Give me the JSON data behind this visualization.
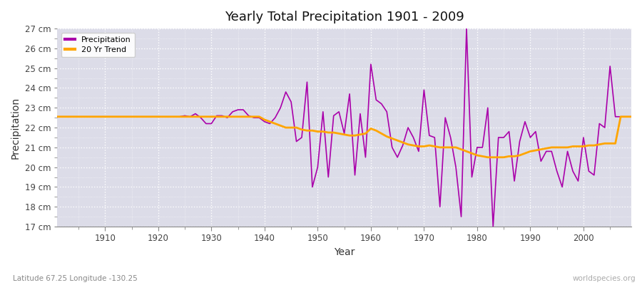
{
  "title": "Yearly Total Precipitation 1901 - 2009",
  "xlabel": "Year",
  "ylabel": "Precipitation",
  "subtitle": "Latitude 67.25 Longitude -130.25",
  "watermark": "worldspecies.org",
  "ylim": [
    17,
    27
  ],
  "yticks": [
    17,
    18,
    19,
    20,
    21,
    22,
    23,
    24,
    25,
    26,
    27
  ],
  "xlim": [
    1901,
    2009
  ],
  "precip_color": "#aa00aa",
  "trend_color": "#ffa500",
  "bg_color": "#dcdce8",
  "fig_bg": "#ffffff",
  "years": [
    1901,
    1902,
    1903,
    1904,
    1905,
    1906,
    1907,
    1908,
    1909,
    1910,
    1911,
    1912,
    1913,
    1914,
    1915,
    1916,
    1917,
    1918,
    1919,
    1920,
    1921,
    1922,
    1923,
    1924,
    1925,
    1926,
    1927,
    1928,
    1929,
    1930,
    1931,
    1932,
    1933,
    1934,
    1935,
    1936,
    1937,
    1938,
    1939,
    1940,
    1941,
    1942,
    1943,
    1944,
    1945,
    1946,
    1947,
    1948,
    1949,
    1950,
    1951,
    1952,
    1953,
    1954,
    1955,
    1956,
    1957,
    1958,
    1959,
    1960,
    1961,
    1962,
    1963,
    1964,
    1965,
    1966,
    1967,
    1968,
    1969,
    1970,
    1971,
    1972,
    1973,
    1974,
    1975,
    1976,
    1977,
    1978,
    1979,
    1980,
    1981,
    1982,
    1983,
    1984,
    1985,
    1986,
    1987,
    1988,
    1989,
    1990,
    1991,
    1992,
    1993,
    1994,
    1995,
    1996,
    1997,
    1998,
    1999,
    2000,
    2001,
    2002,
    2003,
    2004,
    2005,
    2006,
    2007,
    2008,
    2009
  ],
  "precip": [
    22.55,
    22.55,
    22.55,
    22.55,
    22.55,
    22.55,
    22.55,
    22.55,
    22.55,
    22.55,
    22.55,
    22.55,
    22.55,
    22.55,
    22.55,
    22.55,
    22.55,
    22.55,
    22.55,
    22.55,
    22.55,
    22.55,
    22.55,
    22.55,
    22.6,
    22.55,
    22.7,
    22.5,
    22.2,
    22.2,
    22.6,
    22.6,
    22.5,
    22.8,
    22.9,
    22.9,
    22.6,
    22.5,
    22.5,
    22.3,
    22.2,
    22.5,
    23.0,
    23.8,
    23.3,
    21.3,
    21.5,
    24.3,
    19.0,
    20.0,
    22.8,
    19.5,
    22.6,
    22.8,
    21.7,
    23.7,
    19.6,
    22.7,
    20.5,
    25.2,
    23.4,
    23.2,
    22.8,
    21.0,
    20.5,
    21.1,
    22.0,
    21.5,
    20.8,
    23.9,
    21.6,
    21.5,
    18.0,
    22.5,
    21.5,
    20.0,
    17.5,
    27.0,
    19.5,
    21.0,
    21.0,
    23.0,
    17.0,
    21.5,
    21.5,
    21.8,
    19.3,
    21.3,
    22.3,
    21.5,
    21.8,
    20.3,
    20.8,
    20.8,
    19.8,
    19.0,
    20.8,
    19.8,
    19.3,
    21.5,
    19.8,
    19.6,
    22.2,
    22.0,
    25.1,
    22.55,
    22.55,
    22.55,
    22.55
  ],
  "trend": [
    22.55,
    22.55,
    22.55,
    22.55,
    22.55,
    22.55,
    22.55,
    22.55,
    22.55,
    22.55,
    22.55,
    22.55,
    22.55,
    22.55,
    22.55,
    22.55,
    22.55,
    22.55,
    22.55,
    22.55,
    22.55,
    22.55,
    22.55,
    22.55,
    22.55,
    22.55,
    22.55,
    22.55,
    22.55,
    22.55,
    22.55,
    22.55,
    22.55,
    22.55,
    22.55,
    22.55,
    22.55,
    22.55,
    22.55,
    22.4,
    22.3,
    22.2,
    22.1,
    22.0,
    22.0,
    22.0,
    21.9,
    21.85,
    21.85,
    21.8,
    21.8,
    21.75,
    21.75,
    21.7,
    21.65,
    21.6,
    21.6,
    21.65,
    21.7,
    21.95,
    21.85,
    21.7,
    21.55,
    21.45,
    21.35,
    21.25,
    21.15,
    21.1,
    21.05,
    21.05,
    21.1,
    21.05,
    21.0,
    21.0,
    21.0,
    21.0,
    20.9,
    20.8,
    20.7,
    20.6,
    20.55,
    20.5,
    20.5,
    20.5,
    20.5,
    20.55,
    20.55,
    20.6,
    20.7,
    20.8,
    20.85,
    20.9,
    20.95,
    21.0,
    21.0,
    21.0,
    21.0,
    21.05,
    21.05,
    21.05,
    21.1,
    21.1,
    21.15,
    21.2,
    21.2,
    21.2,
    22.55,
    22.55,
    22.55
  ]
}
